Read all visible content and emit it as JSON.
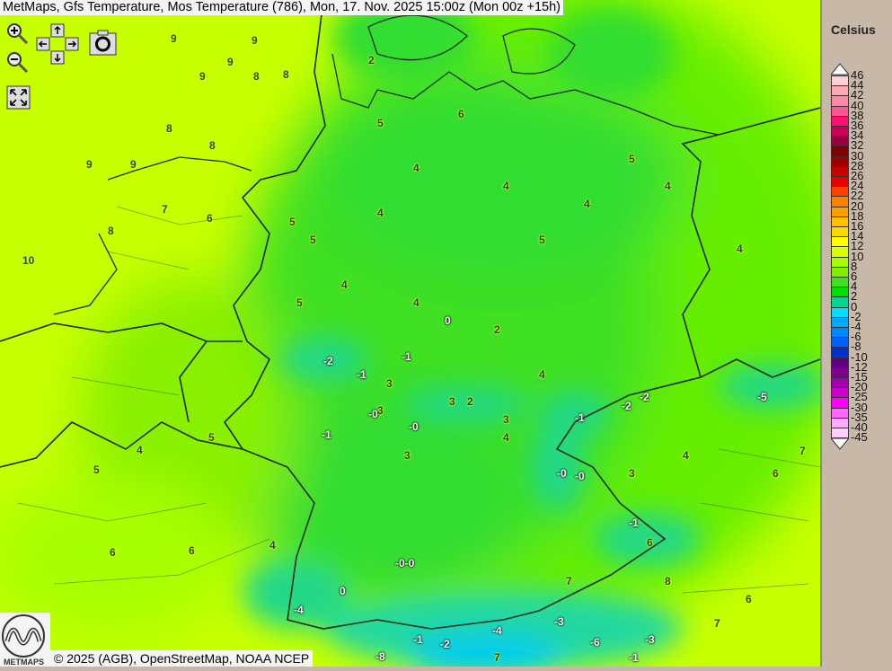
{
  "title": "MetMaps, Gfs Temperature, Mos Temperature (786), Mon, 17. Nov. 2025 15:00z (Mon 00z +15h)",
  "credit": "© 2025 (AGB), OpenStreetMap, NOAA NCEP",
  "logo_text": "METMAPS",
  "controls": {
    "zoom_in": "zoom-in-icon",
    "zoom_out": "zoom-out-icon",
    "pan": "pan-arrows-icon",
    "screenshot": "camera-icon",
    "fullscreen": "fullscreen-icon"
  },
  "legend": {
    "unit": "Celsius",
    "labels": [
      "46",
      "44",
      "42",
      "40",
      "38",
      "36",
      "34",
      "32",
      "30",
      "28",
      "26",
      "24",
      "22",
      "20",
      "18",
      "16",
      "14",
      "12",
      "10",
      "8",
      "6",
      "4",
      "2",
      "0",
      "-2",
      "-4",
      "-6",
      "-8",
      "-10",
      "-12",
      "-15",
      "-20",
      "-25",
      "-30",
      "-35",
      "-40",
      "-45"
    ],
    "colors": [
      "#ffd0d8",
      "#ffa8b0",
      "#ff88a8",
      "#ff5590",
      "#ff1070",
      "#cc0058",
      "#990040",
      "#800000",
      "#a00000",
      "#c80000",
      "#e80000",
      "#ff4000",
      "#ff8000",
      "#ffa000",
      "#ffc000",
      "#ffd800",
      "#ffff00",
      "#d8ff00",
      "#a8ff00",
      "#80f000",
      "#40e020",
      "#00e000",
      "#00d890",
      "#00ddff",
      "#00aaff",
      "#0088ff",
      "#0060ff",
      "#0030d0",
      "#600080",
      "#800090",
      "#a000b0",
      "#cc00cc",
      "#ff00ff",
      "#ff66ff",
      "#ffaaff",
      "#ffd0ff"
    ]
  },
  "stations": [
    "9",
    "9",
    "9",
    "9",
    "8",
    "8",
    "8",
    "9",
    "9",
    "8",
    "10",
    "8",
    "7",
    "6",
    "5",
    "5",
    "4",
    "4",
    "5",
    "6",
    "2",
    "4",
    "5",
    "4",
    "5",
    "4",
    "4",
    "5",
    "4",
    "4",
    "3",
    "3",
    "4",
    "4",
    "0",
    "2",
    "3",
    "-2",
    "-1",
    "-1",
    "3",
    "-0",
    "-0",
    "2",
    "3",
    "-2",
    "-1",
    "-2",
    "-5",
    "-0",
    "-0",
    "3",
    "4",
    "-1",
    "-1",
    "6",
    "7",
    "-4",
    "0",
    "-0-0",
    "-8",
    "-1",
    "-2",
    "-4",
    "-3",
    "-6",
    "-3",
    "-1",
    "7",
    "8",
    "7",
    "6",
    "6",
    "7",
    "5",
    "4",
    "6",
    "6",
    "5",
    "4"
  ]
}
